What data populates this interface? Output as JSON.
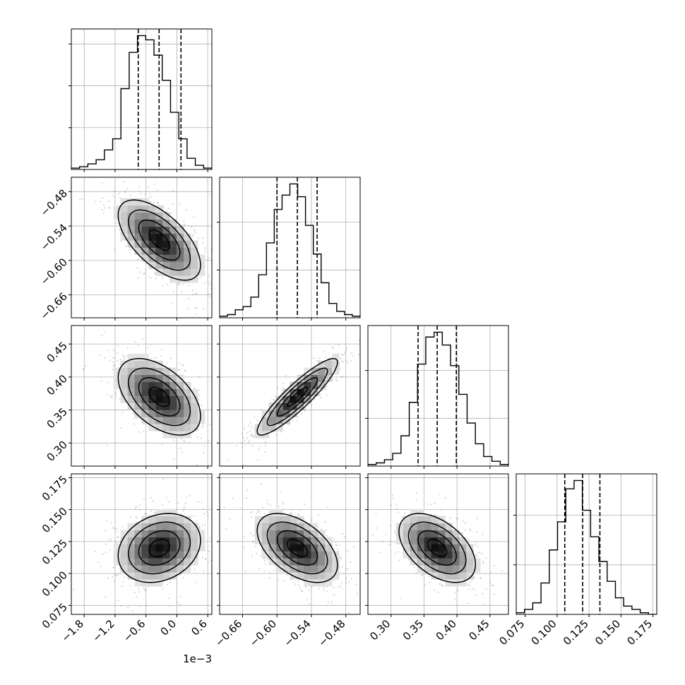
{
  "chart_data": {
    "type": "corner",
    "params": [
      {
        "tick_labels": [
          "−1.8",
          "−1.2",
          "−0.6",
          "0.0",
          "0.6"
        ],
        "ticks": [
          -1.8,
          -1.2,
          -0.6,
          0.0,
          0.6
        ],
        "range": [
          -2.05,
          0.68
        ],
        "offset_label": "1e−3",
        "quantiles": [
          -0.75,
          -0.345,
          0.08
        ],
        "mean": -0.34,
        "sd": 0.4
      },
      {
        "tick_labels": [
          "−0.66",
          "−0.60",
          "−0.54",
          "−0.48"
        ],
        "ticks": [
          -0.66,
          -0.6,
          -0.54,
          -0.48
        ],
        "range": [
          -0.7,
          -0.455
        ],
        "quantiles": [
          -0.6,
          -0.5645,
          -0.53
        ],
        "mean": -0.5645,
        "sd": 0.035
      },
      {
        "tick_labels": [
          "0.30",
          "0.35",
          "0.40",
          "0.45"
        ],
        "ticks": [
          0.3,
          0.35,
          0.4,
          0.45
        ],
        "range": [
          0.265,
          0.478
        ],
        "quantiles": [
          0.341,
          0.37,
          0.399
        ],
        "mean": 0.37,
        "sd": 0.029
      },
      {
        "tick_labels": [
          "0.075",
          "0.100",
          "0.125",
          "0.150",
          "0.175"
        ],
        "ticks": [
          0.075,
          0.1,
          0.125,
          0.15,
          0.175
        ],
        "range": [
          0.068,
          0.178
        ],
        "quantiles": [
          0.106,
          0.12,
          0.1335
        ],
        "mean": 0.12,
        "sd": 0.0135
      }
    ],
    "histograms": [
      {
        "param": 0,
        "bin_edges": [
          -2.05,
          0.68
        ],
        "counts": [
          1,
          2,
          4,
          7,
          14,
          22,
          58,
          84,
          96,
          93,
          82,
          64,
          41,
          22,
          8,
          3,
          1
        ]
      },
      {
        "param": 1,
        "bin_edges": [
          -0.7,
          -0.455
        ],
        "counts": [
          1,
          2,
          5,
          7,
          13,
          27,
          47,
          68,
          77,
          84,
          76,
          58,
          40,
          22,
          9,
          4,
          2,
          1
        ]
      },
      {
        "param": 2,
        "bin_edges": [
          0.265,
          0.478
        ],
        "counts": [
          1,
          2,
          4,
          8,
          19,
          40,
          64,
          81,
          84,
          76,
          63,
          45,
          27,
          14,
          6,
          3,
          1
        ]
      },
      {
        "param": 3,
        "bin_edges": [
          0.068,
          0.178
        ],
        "counts": [
          1,
          3,
          7,
          19,
          39,
          56,
          76,
          81,
          63,
          47,
          32,
          20,
          10,
          5,
          3,
          1,
          0
        ]
      }
    ],
    "pairs": [
      {
        "x": 0,
        "y": 1,
        "correlation": -0.62
      },
      {
        "x": 0,
        "y": 2,
        "correlation": -0.5
      },
      {
        "x": 1,
        "y": 2,
        "correlation": 0.9
      },
      {
        "x": 0,
        "y": 3,
        "correlation": 0.22
      },
      {
        "x": 1,
        "y": 3,
        "correlation": -0.5
      },
      {
        "x": 2,
        "y": 3,
        "correlation": -0.48
      }
    ],
    "contour_levels_sigma": [
      0.5,
      1.0,
      1.5,
      2.0
    ],
    "grid": true,
    "colors": {
      "contour": "#000000",
      "density": "#000000",
      "points": "#8c8c8c",
      "grid": "#b0b0b0",
      "quantile_lines": "#000000"
    }
  }
}
